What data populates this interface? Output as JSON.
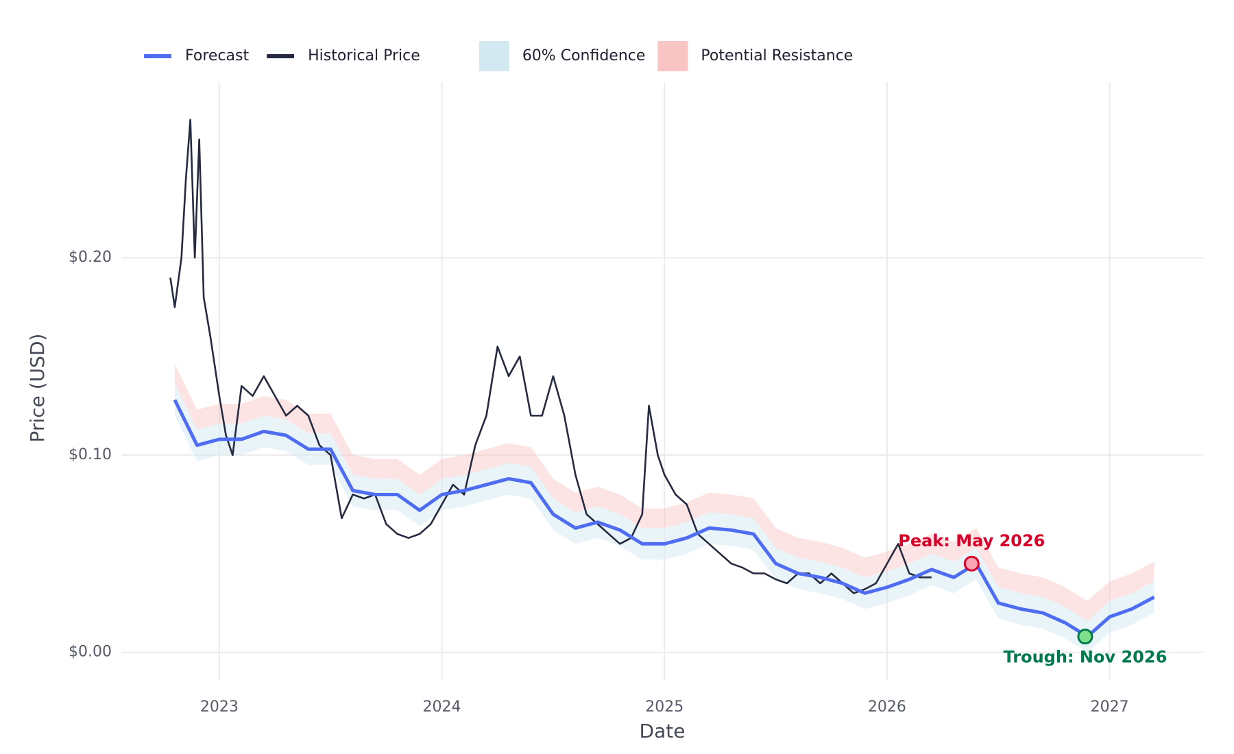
{
  "chart_data": {
    "type": "line",
    "x_label": "Date",
    "y_label": "Price (USD)",
    "xlim": [
      2022.56,
      2027.42
    ],
    "ylim": [
      -0.014,
      0.289
    ],
    "xticks": [
      2023,
      2024,
      2025,
      2026,
      2027
    ],
    "yticks": [
      {
        "value": 0,
        "label": "$0.00"
      },
      {
        "value": 0.1,
        "label": "$0.10"
      },
      {
        "value": 0.2,
        "label": "$0.20"
      }
    ],
    "grid": true,
    "legend": "top",
    "series": [
      {
        "name": "Forecast",
        "color": "#4f6df0",
        "x": [
          2022.8,
          2022.9,
          2023.0,
          2023.1,
          2023.2,
          2023.3,
          2023.4,
          2023.5,
          2023.6,
          2023.7,
          2023.8,
          2023.9,
          2024.0,
          2024.1,
          2024.2,
          2024.3,
          2024.4,
          2024.5,
          2024.6,
          2024.7,
          2024.8,
          2024.9,
          2025.0,
          2025.1,
          2025.2,
          2025.3,
          2025.4,
          2025.5,
          2025.6,
          2025.7,
          2025.8,
          2025.9,
          2026.0,
          2026.1,
          2026.2,
          2026.3,
          2026.4,
          2026.5,
          2026.6,
          2026.7,
          2026.8,
          2026.9,
          2027.0,
          2027.1,
          2027.2
        ],
        "values": [
          0.128,
          0.105,
          0.108,
          0.108,
          0.112,
          0.11,
          0.103,
          0.103,
          0.082,
          0.08,
          0.08,
          0.072,
          0.08,
          0.082,
          0.085,
          0.088,
          0.086,
          0.07,
          0.063,
          0.066,
          0.062,
          0.055,
          0.055,
          0.058,
          0.063,
          0.062,
          0.06,
          0.045,
          0.04,
          0.038,
          0.035,
          0.03,
          0.033,
          0.037,
          0.042,
          0.038,
          0.045,
          0.025,
          0.022,
          0.02,
          0.015,
          0.008,
          0.018,
          0.022,
          0.028
        ]
      },
      {
        "name": "Historical Price",
        "color": "#262a40",
        "x": [
          2022.78,
          2022.8,
          2022.83,
          2022.85,
          2022.87,
          2022.89,
          2022.91,
          2022.93,
          2022.96,
          2023.0,
          2023.03,
          2023.06,
          2023.1,
          2023.15,
          2023.2,
          2023.25,
          2023.3,
          2023.35,
          2023.4,
          2023.45,
          2023.5,
          2023.55,
          2023.6,
          2023.65,
          2023.7,
          2023.75,
          2023.8,
          2023.85,
          2023.9,
          2023.95,
          2024.0,
          2024.05,
          2024.1,
          2024.15,
          2024.2,
          2024.25,
          2024.3,
          2024.35,
          2024.4,
          2024.45,
          2024.5,
          2024.55,
          2024.6,
          2024.65,
          2024.7,
          2024.75,
          2024.8,
          2024.85,
          2024.9,
          2024.93,
          2024.97,
          2025.0,
          2025.05,
          2025.1,
          2025.15,
          2025.2,
          2025.25,
          2025.3,
          2025.35,
          2025.4,
          2025.45,
          2025.5,
          2025.55,
          2025.6,
          2025.65,
          2025.7,
          2025.75,
          2025.8,
          2025.85,
          2025.9,
          2025.95,
          2026.0,
          2026.05,
          2026.1,
          2026.15,
          2026.2
        ],
        "values": [
          0.19,
          0.175,
          0.2,
          0.24,
          0.27,
          0.2,
          0.26,
          0.18,
          0.16,
          0.13,
          0.11,
          0.1,
          0.135,
          0.13,
          0.14,
          0.13,
          0.12,
          0.125,
          0.12,
          0.105,
          0.1,
          0.068,
          0.08,
          0.078,
          0.08,
          0.065,
          0.06,
          0.058,
          0.06,
          0.065,
          0.075,
          0.085,
          0.08,
          0.105,
          0.12,
          0.155,
          0.14,
          0.15,
          0.12,
          0.12,
          0.14,
          0.12,
          0.09,
          0.07,
          0.065,
          0.06,
          0.055,
          0.058,
          0.07,
          0.125,
          0.1,
          0.09,
          0.08,
          0.075,
          0.06,
          0.055,
          0.05,
          0.045,
          0.043,
          0.04,
          0.04,
          0.037,
          0.035,
          0.04,
          0.04,
          0.035,
          0.04,
          0.035,
          0.03,
          0.032,
          0.035,
          0.045,
          0.055,
          0.04,
          0.038,
          0.038
        ]
      }
    ],
    "confidence": {
      "name": "60% Confidence",
      "color": "#d3e9f2",
      "lower": [
        0.12,
        0.097,
        0.1,
        0.1,
        0.104,
        0.102,
        0.095,
        0.095,
        0.074,
        0.072,
        0.072,
        0.064,
        0.072,
        0.074,
        0.077,
        0.08,
        0.078,
        0.062,
        0.055,
        0.058,
        0.054,
        0.047,
        0.047,
        0.05,
        0.055,
        0.054,
        0.052,
        0.037,
        0.032,
        0.03,
        0.027,
        0.022,
        0.025,
        0.029,
        0.034,
        0.03,
        0.037,
        0.017,
        0.014,
        0.012,
        0.007,
        0.0,
        0.01,
        0.014,
        0.02
      ],
      "upper": [
        0.136,
        0.113,
        0.116,
        0.116,
        0.12,
        0.118,
        0.111,
        0.111,
        0.09,
        0.088,
        0.088,
        0.08,
        0.088,
        0.09,
        0.093,
        0.096,
        0.094,
        0.078,
        0.071,
        0.074,
        0.07,
        0.063,
        0.063,
        0.066,
        0.071,
        0.07,
        0.068,
        0.053,
        0.048,
        0.046,
        0.043,
        0.038,
        0.041,
        0.045,
        0.05,
        0.046,
        0.053,
        0.033,
        0.03,
        0.028,
        0.023,
        0.016,
        0.026,
        0.03,
        0.036
      ]
    },
    "resistance": {
      "name": "Potential Resistance",
      "color": "#f8c4c4",
      "upper": [
        0.146,
        0.123,
        0.126,
        0.126,
        0.13,
        0.128,
        0.121,
        0.121,
        0.1,
        0.098,
        0.098,
        0.09,
        0.098,
        0.1,
        0.103,
        0.106,
        0.104,
        0.088,
        0.081,
        0.084,
        0.08,
        0.073,
        0.073,
        0.076,
        0.081,
        0.08,
        0.078,
        0.063,
        0.058,
        0.056,
        0.053,
        0.048,
        0.051,
        0.055,
        0.06,
        0.056,
        0.063,
        0.043,
        0.04,
        0.038,
        0.033,
        0.026,
        0.036,
        0.04,
        0.046
      ]
    },
    "annotations": [
      {
        "text": "Peak: May 2026",
        "x": 2026.38,
        "y": 0.045,
        "color": "#d6002b",
        "fill": "#f9a3b5"
      },
      {
        "text": "Trough: Nov 2026",
        "x": 2026.89,
        "y": 0.008,
        "color": "#00794f",
        "fill": "#7ee08a"
      }
    ]
  }
}
